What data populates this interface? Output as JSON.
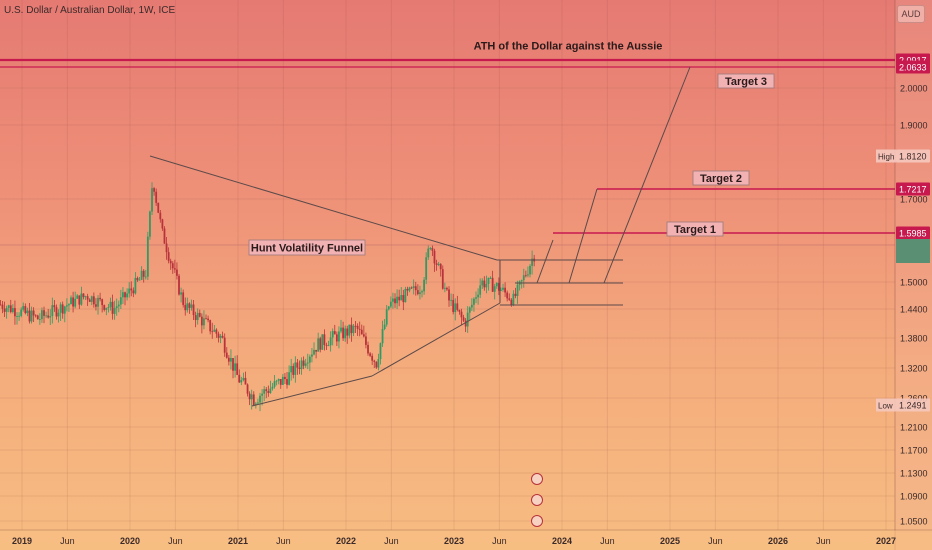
{
  "title": "U.S. Dollar / Australian Dollar, 1W, ICE",
  "currency": "AUD",
  "colors": {
    "bull": "#2f9a63",
    "bear": "#b8323b",
    "level": "#c8194f",
    "trend": "#5a4a4a",
    "label_bg": "#f2b1b3"
  },
  "chart_data": {
    "type": "candlestick",
    "x_ticks": [
      {
        "label": "2019",
        "t": 2019.0
      },
      {
        "label": "Jun",
        "t": 2019.42
      },
      {
        "label": "2020",
        "t": 2020.0
      },
      {
        "label": "Jun",
        "t": 2020.42
      },
      {
        "label": "2021",
        "t": 2021.0
      },
      {
        "label": "Jun",
        "t": 2021.42
      },
      {
        "label": "2022",
        "t": 2022.0
      },
      {
        "label": "Jun",
        "t": 2022.42
      },
      {
        "label": "2023",
        "t": 2023.0
      },
      {
        "label": "Jun",
        "t": 2023.42
      },
      {
        "label": "2024",
        "t": 2024.0
      },
      {
        "label": "Jun",
        "t": 2024.42
      },
      {
        "label": "2025",
        "t": 2025.0
      },
      {
        "label": "Jun",
        "t": 2025.42
      },
      {
        "label": "2026",
        "t": 2026.0
      },
      {
        "label": "Jun",
        "t": 2026.42
      },
      {
        "label": "2027",
        "t": 2027.0
      }
    ],
    "y_ticks": [
      "2.0000",
      "1.9000",
      "1.7000",
      "1.5000",
      "1.4400",
      "1.3800",
      "1.3200",
      "1.2600",
      "1.2100",
      "1.1700",
      "1.1300",
      "1.0900",
      "1.0500"
    ],
    "price_labels": [
      {
        "text": "2.0917",
        "value": 2.0917,
        "style": "level"
      },
      {
        "text": "2.0633",
        "value": 2.0633,
        "style": "level"
      },
      {
        "text": "1.8120",
        "value": 1.812,
        "style": "high",
        "tag": "High"
      },
      {
        "text": "1.7217",
        "value": 1.7217,
        "style": "level"
      },
      {
        "text": "1.5985",
        "value": 1.5985,
        "style": "level"
      },
      {
        "text": "1.2491",
        "value": 1.2491,
        "style": "low",
        "tag": "Low"
      }
    ],
    "annotations": {
      "ath": "ATH of the Dollar against the Aussie",
      "funnel": "Hunt Volatility Funnel",
      "target1": "Target 1",
      "target2": "Target 2",
      "target3": "Target 3"
    },
    "anchors": [
      {
        "t": 2018.8,
        "v": 1.45
      },
      {
        "t": 2019.15,
        "v": 1.42
      },
      {
        "t": 2019.6,
        "v": 1.47
      },
      {
        "t": 2019.85,
        "v": 1.44
      },
      {
        "t": 2020.15,
        "v": 1.52
      },
      {
        "t": 2020.21,
        "v": 1.75
      },
      {
        "t": 2020.3,
        "v": 1.6
      },
      {
        "t": 2020.5,
        "v": 1.45
      },
      {
        "t": 2020.85,
        "v": 1.38
      },
      {
        "t": 2021.0,
        "v": 1.3
      },
      {
        "t": 2021.15,
        "v": 1.26
      },
      {
        "t": 2021.45,
        "v": 1.3
      },
      {
        "t": 2021.75,
        "v": 1.37
      },
      {
        "t": 2022.1,
        "v": 1.4
      },
      {
        "t": 2022.28,
        "v": 1.33
      },
      {
        "t": 2022.4,
        "v": 1.45
      },
      {
        "t": 2022.7,
        "v": 1.49
      },
      {
        "t": 2022.78,
        "v": 1.58
      },
      {
        "t": 2022.95,
        "v": 1.46
      },
      {
        "t": 2023.1,
        "v": 1.41
      },
      {
        "t": 2023.25,
        "v": 1.5
      },
      {
        "t": 2023.4,
        "v": 1.49
      },
      {
        "t": 2023.55,
        "v": 1.46
      },
      {
        "t": 2023.75,
        "v": 1.56
      }
    ]
  }
}
